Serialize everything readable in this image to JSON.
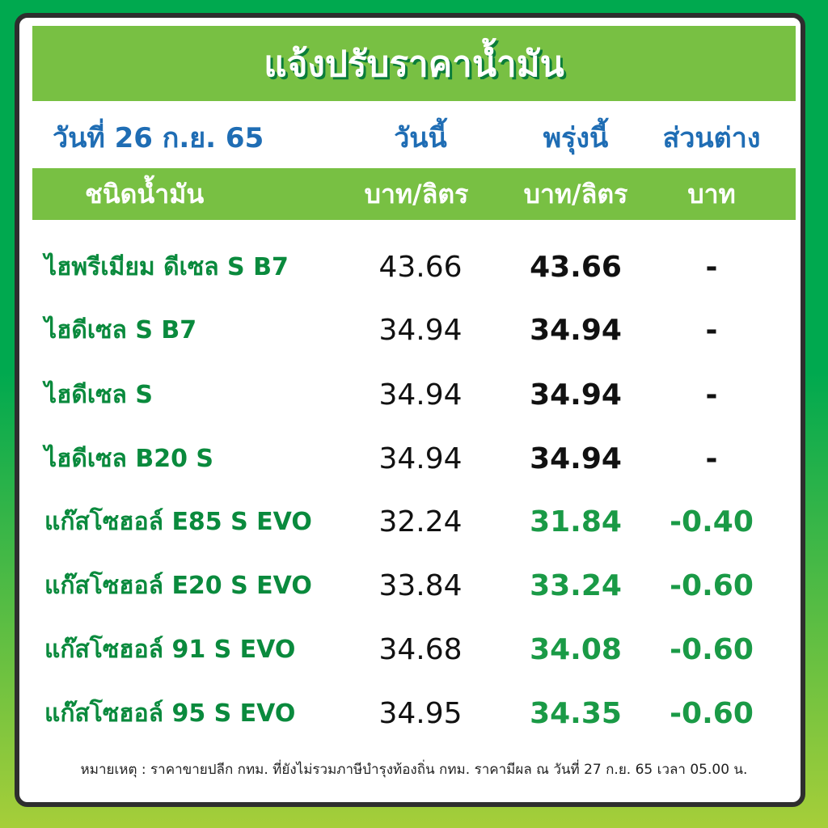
{
  "title": "แจ้งปรับราคาน้ำมัน",
  "header": {
    "date": "วันที่ 26 ก.ย. 65",
    "today": "วันนี้",
    "tomorrow": "พรุ่งนี้",
    "diff": "ส่วนต่าง"
  },
  "subheader": {
    "type": "ชนิดน้ำมัน",
    "today_unit": "บาท/ลิตร",
    "tomorrow_unit": "บาท/ลิตร",
    "diff_unit": "บาท"
  },
  "colors": {
    "unchanged": "#111111",
    "decreased": "#1a9a46"
  },
  "rows": [
    {
      "name": "ไฮพรีเมียม ดีเซล S B7",
      "today": "43.66",
      "tomorrow": "43.66",
      "diff": "-",
      "changed": false
    },
    {
      "name": "ไฮดีเซล S B7",
      "today": "34.94",
      "tomorrow": "34.94",
      "diff": "-",
      "changed": false
    },
    {
      "name": "ไฮดีเซล S",
      "today": "34.94",
      "tomorrow": "34.94",
      "diff": "-",
      "changed": false
    },
    {
      "name": "ไฮดีเซล B20 S",
      "today": "34.94",
      "tomorrow": "34.94",
      "diff": "-",
      "changed": false
    },
    {
      "name": "แก๊สโซฮอล์ E85 S EVO",
      "today": "32.24",
      "tomorrow": "31.84",
      "diff": "-0.40",
      "changed": true
    },
    {
      "name": "แก๊สโซฮอล์ E20 S EVO",
      "today": "33.84",
      "tomorrow": "33.24",
      "diff": "-0.60",
      "changed": true
    },
    {
      "name": "แก๊สโซฮอล์ 91 S EVO",
      "today": "34.68",
      "tomorrow": "34.08",
      "diff": "-0.60",
      "changed": true
    },
    {
      "name": "แก๊สโซฮอล์ 95 S EVO",
      "today": "34.95",
      "tomorrow": "34.35",
      "diff": "-0.60",
      "changed": true
    }
  ],
  "note": "หมายเหตุ :  ราคาขายปลีก กทม. ที่ยังไม่รวมภาษีบำรุงท้องถิ่น กทม.  ราคามีผล ณ วันที่ 27 ก.ย. 65 เวลา 05.00 น."
}
